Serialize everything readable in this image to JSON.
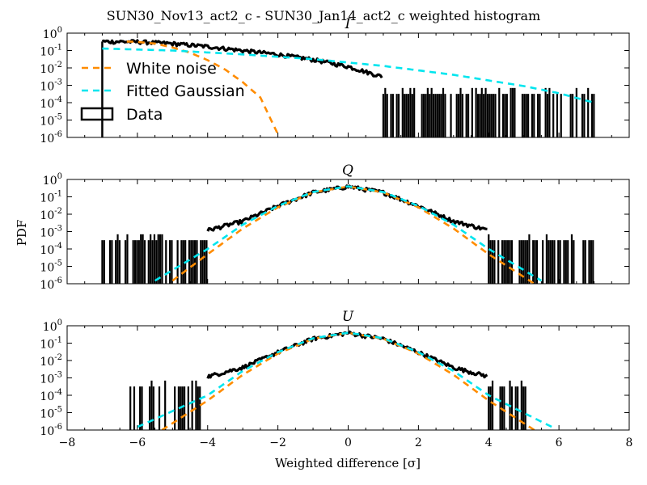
{
  "chart_data": {
    "type": "line",
    "title": "SUN30_Nov13_act2_c - SUN30_Jan14_act2_c weighted histogram",
    "xlabel": "Weighted difference [σ]",
    "ylabel": "PDF",
    "xlim": [
      -8,
      8
    ],
    "ylim": [
      1e-06,
      1
    ],
    "yscale": "log",
    "x_ticks": [
      "−8",
      "−6",
      "−4",
      "−2",
      "0",
      "2",
      "4",
      "6",
      "8"
    ],
    "y_ticks": [
      {
        "base": "10",
        "exp": "0"
      },
      {
        "base": "10",
        "exp": "-1"
      },
      {
        "base": "10",
        "exp": "-2"
      },
      {
        "base": "10",
        "exp": "-3"
      },
      {
        "base": "10",
        "exp": "-4"
      },
      {
        "base": "10",
        "exp": "-5"
      },
      {
        "base": "10",
        "exp": "-6"
      }
    ],
    "legend": {
      "placement": "upper-left of top panel",
      "entries": [
        {
          "label": "White noise",
          "color": "#ff8c00",
          "style": "dashed"
        },
        {
          "label": "Fitted Gaussian",
          "color": "#00e5ee",
          "style": "dashed"
        },
        {
          "label": "Data",
          "color": "#000000",
          "style": "box"
        }
      ]
    },
    "panels": [
      {
        "title": "I",
        "series": [
          {
            "name": "White noise",
            "color": "#ff8c00",
            "x": [
              -6.3,
              -6.0,
              -5.5,
              -5.0,
              -4.5,
              -4.0,
              -3.5,
              -3.0,
              -2.5,
              -2.0
            ],
            "y": [
              0.33,
              0.31,
              0.25,
              0.15,
              0.075,
              0.028,
              0.008,
              0.0015,
              0.0002,
              1.5e-06
            ]
          },
          {
            "name": "Fitted Gaussian",
            "color": "#00e5ee",
            "x": [
              -7.0,
              -5.0,
              -3.0,
              -1.0,
              1.0,
              3.0,
              5.0,
              6.0,
              7.0
            ],
            "y": [
              0.13,
              0.1,
              0.06,
              0.032,
              0.013,
              0.004,
              0.0009,
              0.00035,
              0.0001
            ]
          },
          {
            "name": "Data",
            "color": "#000000",
            "x": [
              -7.0,
              -6.0,
              -5.0,
              -4.0,
              -3.0,
              -2.0,
              -1.0,
              0.0,
              0.5,
              1.0
            ],
            "y": [
              0.33,
              0.32,
              0.25,
              0.17,
              0.1,
              0.06,
              0.03,
              0.012,
              0.006,
              0.003
            ],
            "noise_region": [
              1.0,
              7.0
            ]
          }
        ]
      },
      {
        "title": "Q",
        "series": [
          {
            "name": "White noise",
            "color": "#ff8c00",
            "x": [
              -5.0,
              -4.0,
              -3.0,
              -2.0,
              -1.0,
              0.0,
              1.0,
              2.0,
              3.0,
              4.0,
              5.3
            ],
            "y": [
              1.5e-06,
              5e-05,
              0.0015,
              0.025,
              0.18,
              0.39,
              0.18,
              0.025,
              0.0015,
              5e-05,
              1e-06
            ]
          },
          {
            "name": "Fitted Gaussian",
            "color": "#00e5ee",
            "x": [
              -5.5,
              -4.0,
              -3.0,
              -2.0,
              -1.0,
              0.0,
              1.0,
              2.0,
              3.0,
              4.0,
              5.5
            ],
            "y": [
              1.5e-06,
              0.0001,
              0.0025,
              0.03,
              0.19,
              0.4,
              0.19,
              0.03,
              0.0025,
              0.0001,
              1.5e-06
            ]
          },
          {
            "name": "Data",
            "color": "#000000",
            "x": [
              -4.0,
              -3.0,
              -2.0,
              -1.0,
              0.0,
              1.0,
              2.0,
              3.0,
              4.0
            ],
            "y": [
              0.0012,
              0.004,
              0.03,
              0.18,
              0.39,
              0.18,
              0.03,
              0.004,
              0.0012
            ],
            "noise_region": [
              [
                -7.0,
                -4.0
              ],
              [
                4.0,
                7.0
              ]
            ]
          }
        ]
      },
      {
        "title": "U",
        "series": [
          {
            "name": "White noise",
            "color": "#ff8c00",
            "x": [
              -5.3,
              -4.0,
              -3.0,
              -2.0,
              -1.0,
              0.0,
              1.0,
              2.0,
              3.0,
              4.0,
              5.3
            ],
            "y": [
              1e-06,
              5e-05,
              0.0015,
              0.025,
              0.18,
              0.39,
              0.18,
              0.025,
              0.0015,
              5e-05,
              1e-06
            ]
          },
          {
            "name": "Fitted Gaussian",
            "color": "#00e5ee",
            "x": [
              -6.0,
              -4.0,
              -3.0,
              -2.0,
              -1.0,
              0.0,
              1.0,
              2.0,
              3.0,
              4.0,
              5.8
            ],
            "y": [
              1.5e-06,
              0.0001,
              0.0025,
              0.03,
              0.19,
              0.4,
              0.19,
              0.03,
              0.0025,
              0.0001,
              1.5e-06
            ]
          },
          {
            "name": "Data",
            "color": "#000000",
            "x": [
              -4.0,
              -3.0,
              -2.0,
              -1.0,
              0.0,
              1.0,
              2.0,
              3.0,
              4.0
            ],
            "y": [
              0.0012,
              0.004,
              0.03,
              0.18,
              0.39,
              0.18,
              0.03,
              0.004,
              0.0012
            ],
            "noise_region": [
              [
                -6.2,
                -4.2
              ],
              [
                4.0,
                5.2
              ]
            ]
          }
        ]
      }
    ]
  }
}
